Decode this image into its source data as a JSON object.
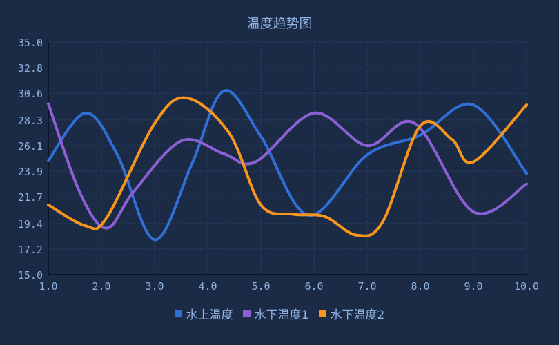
{
  "chart_data": {
    "type": "line",
    "title": "温度趋势图",
    "xlabel": "",
    "ylabel": "",
    "xlim": [
      1.0,
      10.0
    ],
    "ylim": [
      15.0,
      35.0
    ],
    "x_ticks": [
      "1.0",
      "2.0",
      "3.0",
      "4.0",
      "5.0",
      "6.0",
      "7.0",
      "8.0",
      "9.0",
      "10.0"
    ],
    "y_ticks": [
      "15.0",
      "17.2",
      "19.4",
      "21.7",
      "23.9",
      "26.1",
      "28.3",
      "30.6",
      "32.8",
      "35.0"
    ],
    "grid": true,
    "legend_position": "bottom-center",
    "series": [
      {
        "name": "水上温度",
        "color": "#2f6fd6",
        "points": [
          [
            1.0,
            24.8
          ],
          [
            1.7,
            28.9
          ],
          [
            2.3,
            25.3
          ],
          [
            3.0,
            18.0
          ],
          [
            3.7,
            24.5
          ],
          [
            4.3,
            30.8
          ],
          [
            5.0,
            26.9
          ],
          [
            5.9,
            20.1
          ],
          [
            7.0,
            25.3
          ],
          [
            8.0,
            27.0
          ],
          [
            9.0,
            29.6
          ],
          [
            10.0,
            23.7
          ]
        ]
      },
      {
        "name": "水下温度1",
        "color": "#8b60d4",
        "points": [
          [
            1.0,
            29.7
          ],
          [
            1.6,
            22.0
          ],
          [
            2.1,
            19.0
          ],
          [
            2.6,
            22.1
          ],
          [
            3.5,
            26.5
          ],
          [
            4.3,
            25.4
          ],
          [
            4.9,
            24.7
          ],
          [
            6.0,
            28.9
          ],
          [
            7.0,
            26.1
          ],
          [
            7.9,
            28.0
          ],
          [
            9.0,
            20.4
          ],
          [
            10.0,
            22.8
          ]
        ]
      },
      {
        "name": "水下温度2",
        "color": "#f6961f",
        "points": [
          [
            1.0,
            21.0
          ],
          [
            1.7,
            19.2
          ],
          [
            2.1,
            19.9
          ],
          [
            3.0,
            28.0
          ],
          [
            3.6,
            30.2
          ],
          [
            4.4,
            27.2
          ],
          [
            5.0,
            21.0
          ],
          [
            5.6,
            20.2
          ],
          [
            6.2,
            20.0
          ],
          [
            6.8,
            18.4
          ],
          [
            7.3,
            19.6
          ],
          [
            8.0,
            27.8
          ],
          [
            8.6,
            26.6
          ],
          [
            9.0,
            24.7
          ],
          [
            10.0,
            29.6
          ]
        ]
      }
    ]
  },
  "colors": {
    "background": "#1b2a45",
    "axis": "#0b1424",
    "grid": "#2c4466",
    "text": "#8fb4e3"
  }
}
